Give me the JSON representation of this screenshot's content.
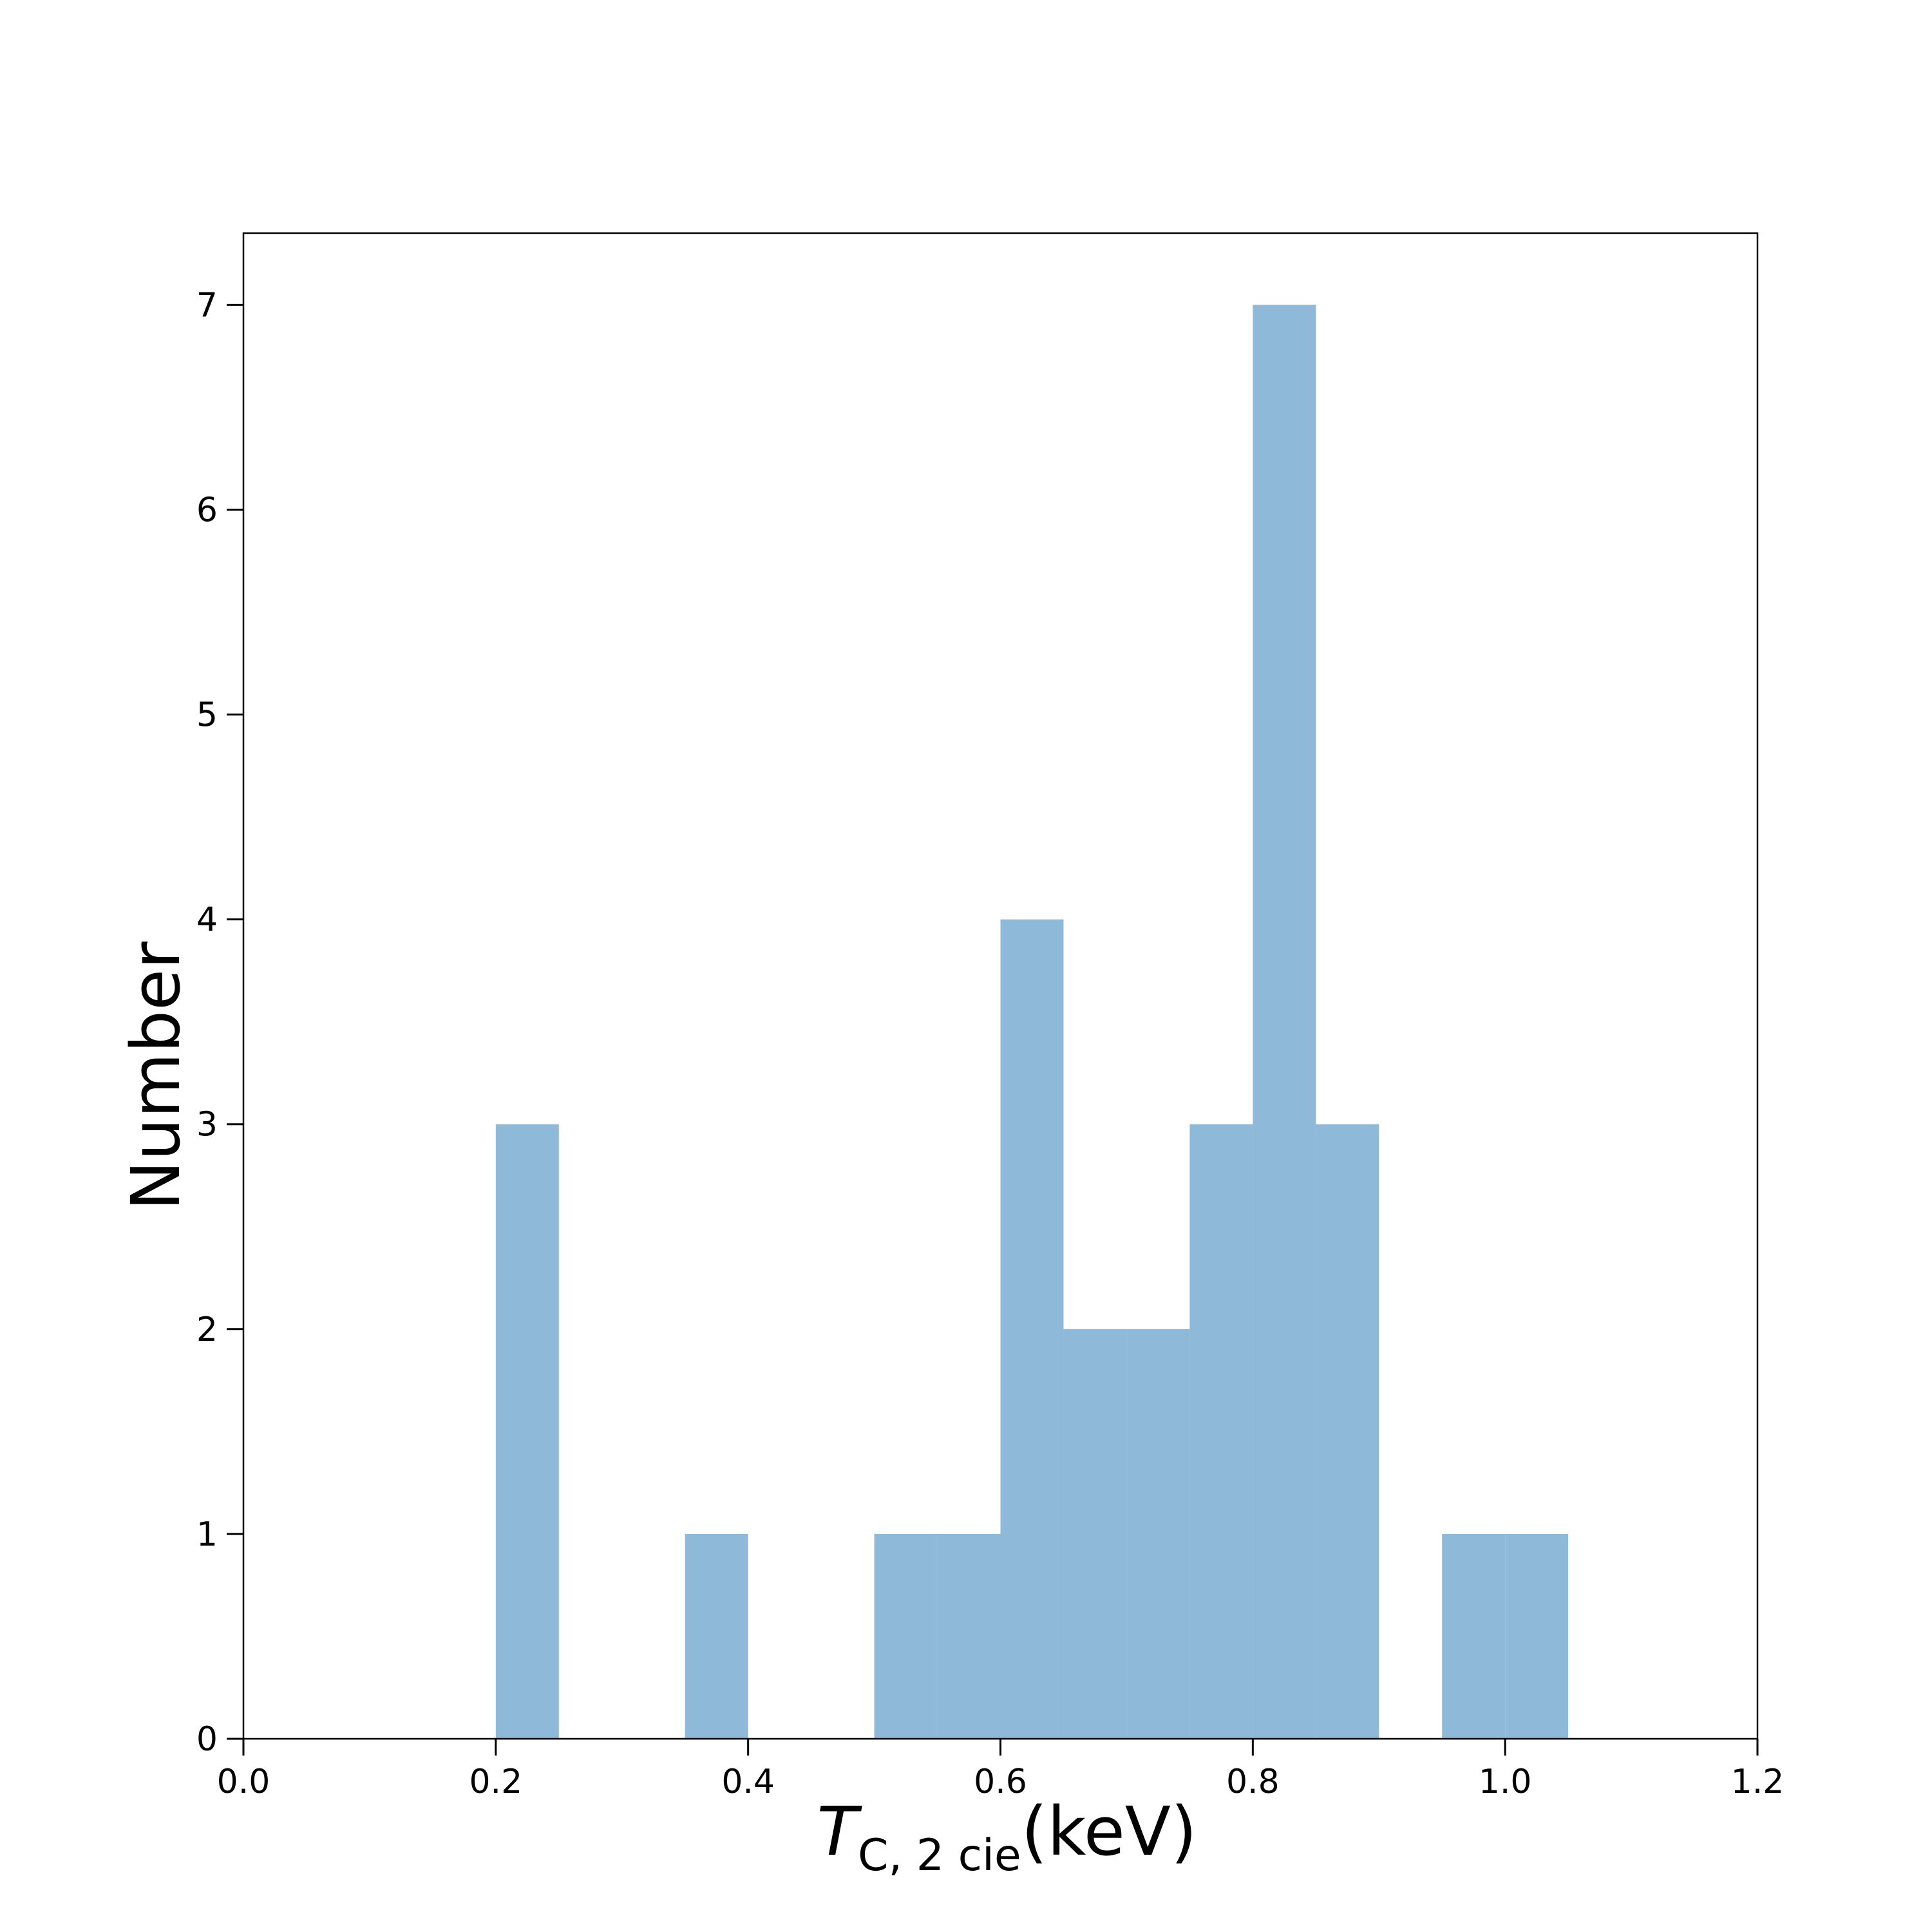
{
  "chart_data": {
    "type": "bar",
    "histogram": true,
    "bin_width": 0.05,
    "bins": [
      {
        "x0": 0.2,
        "x1": 0.25,
        "count": 3
      },
      {
        "x0": 0.35,
        "x1": 0.4,
        "count": 1
      },
      {
        "x0": 0.5,
        "x1": 0.55,
        "count": 1
      },
      {
        "x0": 0.55,
        "x1": 0.6,
        "count": 1
      },
      {
        "x0": 0.6,
        "x1": 0.65,
        "count": 4
      },
      {
        "x0": 0.65,
        "x1": 0.7,
        "count": 2
      },
      {
        "x0": 0.7,
        "x1": 0.75,
        "count": 2
      },
      {
        "x0": 0.75,
        "x1": 0.8,
        "count": 3
      },
      {
        "x0": 0.8,
        "x1": 0.85,
        "count": 7
      },
      {
        "x0": 0.85,
        "x1": 0.9,
        "count": 3
      },
      {
        "x0": 0.95,
        "x1": 1.0,
        "count": 1
      },
      {
        "x0": 1.0,
        "x1": 1.05,
        "count": 1
      }
    ],
    "title": "",
    "xlabel": {
      "symbol": "T",
      "subscript": "C, 2 cie",
      "unit": "(keV)"
    },
    "ylabel": "Number",
    "xlim": [
      0.0,
      1.2
    ],
    "ylim": [
      0,
      7.35
    ],
    "xticks": [
      "0.0",
      "0.2",
      "0.4",
      "0.6",
      "0.8",
      "1.0",
      "1.2"
    ],
    "yticks": [
      "0",
      "1",
      "2",
      "3",
      "4",
      "5",
      "6",
      "7"
    ],
    "bar_color": "#8fb9d9",
    "grid": false,
    "legend": "none"
  }
}
